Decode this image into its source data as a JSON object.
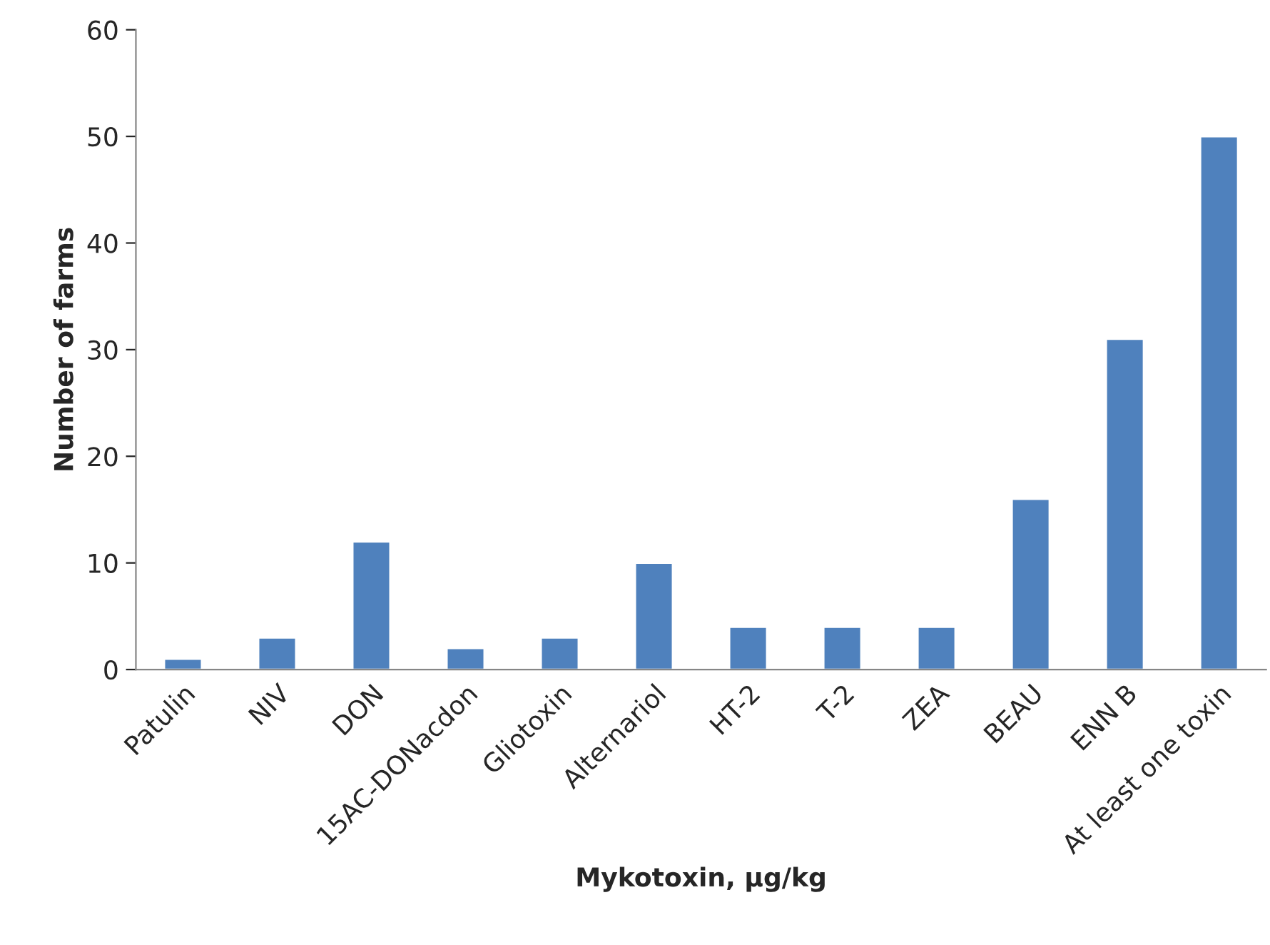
{
  "chart_data": {
    "type": "bar",
    "xlabel": "Mykotoxin, µg/kg",
    "ylabel": "Number of farms",
    "categories": [
      "Patulin",
      "NIV",
      "DON",
      "15AC-DONacdon",
      "Gliotoxin",
      "Alternariol",
      "HT-2",
      "T-2",
      "ZEA",
      "BEAU",
      "ENN B",
      "At least one toxin"
    ],
    "values": [
      1,
      3,
      12,
      2,
      3,
      10,
      4,
      4,
      4,
      16,
      31,
      50
    ],
    "color": "#4f81bd",
    "ylim": [
      0,
      60
    ],
    "yticks": [
      0,
      10,
      20,
      30,
      40,
      50,
      60
    ],
    "grid": false,
    "legend": false
  }
}
